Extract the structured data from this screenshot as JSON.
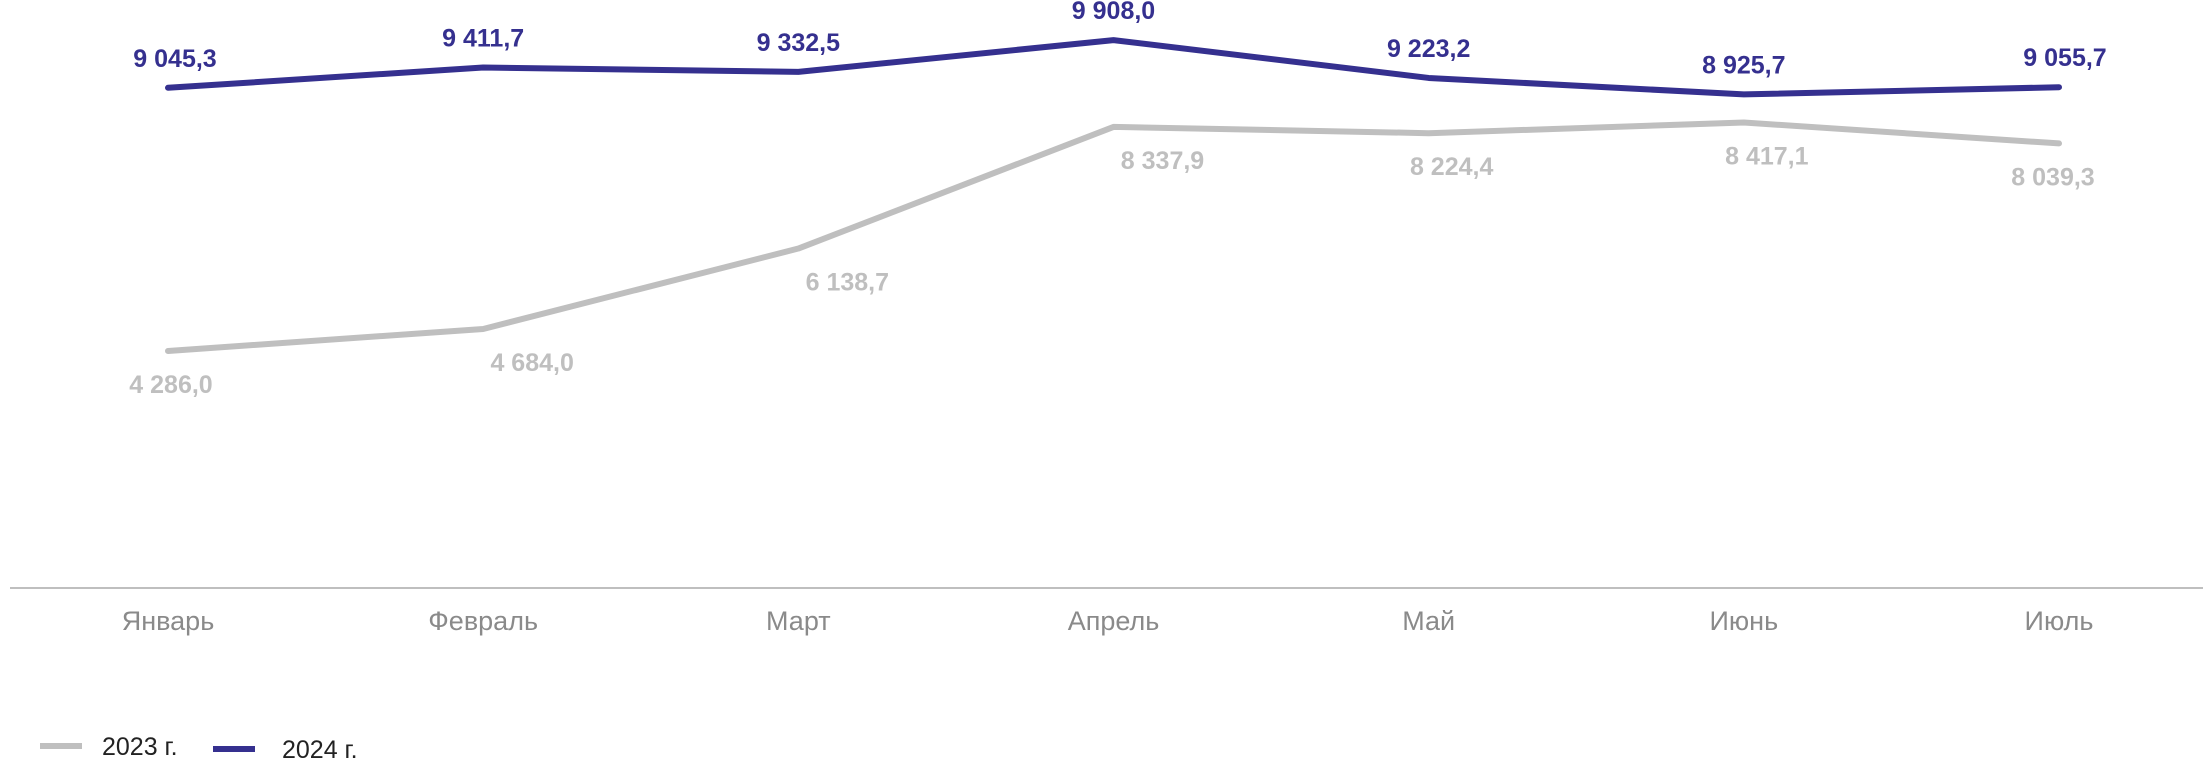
{
  "chart_data": {
    "type": "line",
    "categories": [
      "Январь",
      "Февраль",
      "Март",
      "Апрель",
      "Май",
      "Июнь",
      "Июль"
    ],
    "series": [
      {
        "name": "2023 г.",
        "color": "#bfbfbf",
        "values": [
          4286.0,
          4684.0,
          6138.7,
          8337.9,
          8224.4,
          8417.1,
          8039.3
        ],
        "labels": [
          "4 286,0",
          "4 684,0",
          "6 138,7",
          "8 337,9",
          "8 224,4",
          "8 417,1",
          "8 039,3"
        ]
      },
      {
        "name": "2024 г.",
        "color": "#35308f",
        "values": [
          9045.3,
          9411.7,
          9332.5,
          9908.0,
          9223.2,
          8925.7,
          9055.7
        ],
        "labels": [
          "9 045,3",
          "9 411,7",
          "9 332,5",
          "9 908,0",
          "9 223,2",
          "8 925,7",
          "9 055,7"
        ]
      }
    ],
    "ylim": [
      0,
      10500
    ],
    "grid": false,
    "legend_position": "bottom-left"
  }
}
